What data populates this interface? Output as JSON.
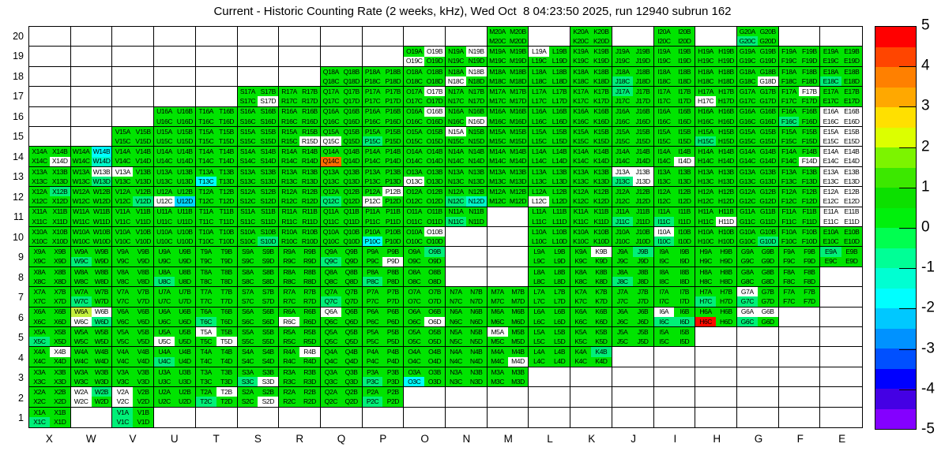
{
  "title": "Current - Historic Counting Rate (2 weeks, kHz), Wed Oct  8 04:23:50 2025, run 12940 subrun 162",
  "chart_data": {
    "type": "heatmap",
    "title": "Current - Historic Counting Rate (2 weeks, kHz), Wed Oct  8 04:23:50 2025, run 12940 subrun 162",
    "x_categories": [
      "X",
      "W",
      "V",
      "U",
      "T",
      "S",
      "R",
      "Q",
      "P",
      "O",
      "N",
      "M",
      "L",
      "K",
      "J",
      "I",
      "H",
      "G",
      "F",
      "E"
    ],
    "y_categories": [
      20,
      19,
      18,
      17,
      16,
      15,
      14,
      13,
      12,
      11,
      10,
      9,
      8,
      7,
      6,
      5,
      4,
      3,
      2,
      1
    ],
    "sublabels": [
      "A",
      "B",
      "C",
      "D"
    ],
    "grid_on": true,
    "legend_position": "right-colorbar",
    "value_scale": {
      "min": -5,
      "max": 5,
      "ticks": [
        5,
        4,
        3,
        2,
        1,
        0,
        -1,
        -2,
        -3,
        -4,
        -5
      ]
    },
    "colorbar_colors": [
      "#FF0000",
      "#FF4500",
      "#FF8000",
      "#FFA800",
      "#FFE000",
      "#DCFF00",
      "#7CF400",
      "#3CE800",
      "#0CE000",
      "#00F00C",
      "#00FF50",
      "#00FF96",
      "#00FFD2",
      "#00FFFF",
      "#00C8FF",
      "#0092FF",
      "#0050FF",
      "#0000FF",
      "#4400E4",
      "#8400FF"
    ],
    "palette": {
      "g": "#00E400",
      "sg": "#00F078",
      "cy": "#00FFFF",
      "cy2": "#00D8FF",
      "tq": "#00FAC8",
      "yg": "#C3F13C",
      "or": "#FF6C00",
      "rd": "#FF0A00",
      "w": "#FFFFFF"
    },
    "approx_value_per_color": {
      "g": 0.3,
      "sg": -0.7,
      "cy": -1.8,
      "cy2": -2.3,
      "tq": -1.3,
      "yg": 2.3,
      "or": 3.8,
      "rd": 4.8,
      "w": null
    },
    "default_color": "g",
    "present_by_row": {
      "20": [
        "M",
        "K",
        "I",
        "G"
      ],
      "19": [
        "O",
        "N",
        "M",
        "L",
        "K",
        "J",
        "I",
        "H",
        "G",
        "F",
        "E"
      ],
      "18": [
        "Q",
        "P",
        "O",
        "N",
        "M",
        "L",
        "K",
        "J",
        "I",
        "H",
        "G",
        "F",
        "E"
      ],
      "17": [
        "S",
        "R",
        "Q",
        "P",
        "O",
        "N",
        "M",
        "L",
        "K",
        "J",
        "I",
        "H",
        "G",
        "F",
        "E"
      ],
      "16": [
        "U",
        "T",
        "S",
        "R",
        "Q",
        "P",
        "O",
        "N",
        "M",
        "L",
        "K",
        "J",
        "I",
        "H",
        "G",
        "F",
        "E"
      ],
      "15": [
        "V",
        "U",
        "T",
        "S",
        "R",
        "Q",
        "P",
        "O",
        "N",
        "M",
        "L",
        "K",
        "J",
        "I",
        "H",
        "G",
        "F",
        "E"
      ],
      "14": [
        "X",
        "W",
        "V",
        "U",
        "T",
        "S",
        "R",
        "Q",
        "P",
        "O",
        "N",
        "M",
        "L",
        "K",
        "J",
        "I",
        "H",
        "G",
        "F",
        "E"
      ],
      "13": [
        "X",
        "W",
        "V",
        "U",
        "T",
        "S",
        "R",
        "Q",
        "P",
        "O",
        "N",
        "M",
        "L",
        "K",
        "J",
        "I",
        "H",
        "G",
        "F",
        "E"
      ],
      "12": [
        "X",
        "W",
        "V",
        "U",
        "T",
        "S",
        "R",
        "Q",
        "P",
        "O",
        "N",
        "M",
        "L",
        "K",
        "J",
        "I",
        "H",
        "G",
        "F",
        "E"
      ],
      "11": [
        "X",
        "W",
        "V",
        "U",
        "T",
        "S",
        "R",
        "Q",
        "P",
        "O",
        "N",
        "L",
        "K",
        "J",
        "I",
        "H",
        "G",
        "F",
        "E"
      ],
      "10": [
        "X",
        "W",
        "V",
        "U",
        "T",
        "S",
        "R",
        "Q",
        "P",
        "O",
        "L",
        "K",
        "J",
        "I",
        "H",
        "G",
        "F",
        "E"
      ],
      "9": [
        "X",
        "W",
        "V",
        "U",
        "T",
        "S",
        "R",
        "Q",
        "P",
        "O",
        "L",
        "K",
        "J",
        "I",
        "H",
        "G",
        "F",
        "E"
      ],
      "8": [
        "X",
        "W",
        "V",
        "U",
        "T",
        "S",
        "R",
        "Q",
        "P",
        "O",
        "L",
        "K",
        "J",
        "I",
        "H",
        "G",
        "F"
      ],
      "7": [
        "X",
        "W",
        "V",
        "U",
        "T",
        "S",
        "R",
        "Q",
        "P",
        "O",
        "N",
        "M",
        "L",
        "K",
        "J",
        "I",
        "H",
        "G",
        "F"
      ],
      "6": [
        "X",
        "W",
        "V",
        "U",
        "T",
        "S",
        "R",
        "Q",
        "P",
        "O",
        "N",
        "M",
        "L",
        "K",
        "J",
        "I",
        "H",
        "G"
      ],
      "5": [
        "X",
        "W",
        "V",
        "U",
        "T",
        "S",
        "R",
        "Q",
        "P",
        "O",
        "N",
        "M",
        "L",
        "K",
        "J",
        "I"
      ],
      "4": [
        "X",
        "W",
        "V",
        "U",
        "T",
        "S",
        "R",
        "Q",
        "P",
        "O",
        "N",
        "M",
        "L",
        "K"
      ],
      "3": [
        "X",
        "W",
        "V",
        "U",
        "T",
        "S",
        "R",
        "Q",
        "P",
        "O",
        "N",
        "M"
      ],
      "2": [
        "X",
        "W",
        "V",
        "U",
        "T",
        "S",
        "R",
        "Q",
        "P"
      ],
      "1": [
        "X",
        "V"
      ]
    },
    "cell_color_overrides": {
      "G20C": "sg",
      "O19B": "w",
      "O19C": "w",
      "N19B": "w",
      "L19A": "w",
      "N18B": "w",
      "N18C": "w",
      "G18D": "w",
      "J18C": "sg",
      "E18C": "sg",
      "S17D": "w",
      "O17B": "w",
      "H17C": "w",
      "F17B": "w",
      "J17A": "sg",
      "O16B": "w",
      "N16D": "w",
      "E16A": "w",
      "E16B": "w",
      "E16C": "w",
      "E16D": "w",
      "F16C": "sg",
      "R15D": "w",
      "Q15C": "w",
      "N15A": "w",
      "E15A": "w",
      "E15B": "w",
      "E15C": "w",
      "E15D": "w",
      "H15C": "sg",
      "P15C": "sg",
      "X14D": "w",
      "I14D": "w",
      "F14D": "w",
      "E14A": "w",
      "E14B": "w",
      "E14C": "w",
      "E14D": "w",
      "W14B": "cy",
      "W14D": "tq",
      "Q14C": "or",
      "V13A": "w",
      "W13B": "w",
      "O13C": "w",
      "J13A": "w",
      "J13B": "w",
      "J13D": "w",
      "E13A": "w",
      "E13B": "w",
      "E13C": "w",
      "E13D": "w",
      "T13C": "cy",
      "W13D": "sg",
      "J13C": "sg",
      "U12C": "w",
      "P12B": "w",
      "P12C": "w",
      "L12C": "w",
      "E12A": "w",
      "E12B": "w",
      "E12C": "w",
      "E12D": "w",
      "U12D": "cy2",
      "N12D": "tq",
      "X12B": "sg",
      "V12D": "sg",
      "Q12C": "sg",
      "N12C": "sg",
      "H11D": "w",
      "E11A": "w",
      "E11B": "w",
      "E11C": "w",
      "E11D": "w",
      "N11C": "sg",
      "J11C": "sg",
      "I11C": "sg",
      "O10B": "w",
      "I10A": "w",
      "P10C": "cy",
      "S10D": "sg",
      "G10D": "sg",
      "I10C": "sg",
      "P9D": "w",
      "K9B": "w",
      "W9C": "sg",
      "Q9C": "sg",
      "O9B": "sg",
      "J9B": "sg",
      "E9A": "sg",
      "U8C": "sg",
      "J8C": "sg",
      "P8C": "sg",
      "G7A": "w",
      "W7C": "sg",
      "H7C": "sg",
      "G7C": "sg",
      "Q7C": "sg",
      "W6A": "yg",
      "W6B": "w",
      "W6C": "w",
      "W6D": "sg",
      "R6C": "w",
      "Q6A": "w",
      "O6D": "w",
      "I6A": "w",
      "I6C": "sg",
      "I6D": "sg",
      "H6C": "rd",
      "G6A": "w",
      "G6B": "w",
      "G6C": "sg",
      "T6C": "sg",
      "U5C": "w",
      "T5A": "w",
      "T5D": "w",
      "M5A": "w",
      "X5C": "sg",
      "X4B": "w",
      "R4B": "w",
      "M4D": "w",
      "U4C": "sg",
      "K4B": "sg",
      "S3D": "w",
      "O3C": "cy",
      "P3C": "sg",
      "S3C": "sg",
      "W2A": "w",
      "W2C": "w",
      "V2A": "w",
      "V2C": "w",
      "T2B": "w",
      "S2D": "w",
      "W2B": "sg",
      "T2C": "sg",
      "P2C": "sg",
      "X1C": "sg",
      "V1A": "sg",
      "V1C": "sg"
    }
  }
}
